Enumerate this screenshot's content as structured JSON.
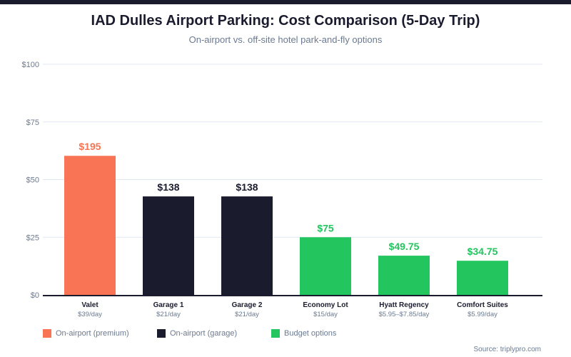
{
  "header": {
    "title": "IAD Dulles Airport Parking: Cost Comparison (5-Day Trip)",
    "subtitle": "On-airport vs. off-site hotel park-and-fly options"
  },
  "source": "Source: triplypro.com",
  "colors": {
    "premium": "#f87455",
    "garage": "#1a1c2e",
    "budget": "#22c55e",
    "grid": "#e2e8f0",
    "axis_text": "#6b7a90"
  },
  "legend": [
    {
      "label": "On-airport (premium)",
      "group": "premium"
    },
    {
      "label": "On-airport (garage)",
      "group": "garage"
    },
    {
      "label": "Budget options",
      "group": "budget"
    }
  ],
  "chart_data": {
    "type": "bar",
    "title": "IAD Dulles Airport Parking: Cost Comparison (5-Day Trip)",
    "subtitle": "On-airport vs. off-site hotel park-and-fly options",
    "xlabel": "",
    "ylabel": "",
    "ylim": [
      0,
      100
    ],
    "yticks": [
      0,
      25,
      50,
      75,
      100
    ],
    "ytick_labels": [
      "$0",
      "$25",
      "$50",
      "$75",
      "$100"
    ],
    "grid": true,
    "legend_position": "bottom-left",
    "categories": [
      "Valet",
      "Garage 1",
      "Garage 2",
      "Economy Lot",
      "Hyatt Regency",
      "Comfort Suites"
    ],
    "sublabels": [
      "$39/day",
      "$21/day",
      "$21/day",
      "$15/day",
      "$5.95–$7.85/day",
      "$5.99/day"
    ],
    "data_labels": [
      "$195",
      "$138",
      "$138",
      "$75",
      "$49.75",
      "$34.75"
    ],
    "values": [
      195,
      138,
      138,
      75,
      49.75,
      34.75
    ],
    "axis_values": [
      60.3,
      42.7,
      42.7,
      25,
      17,
      14.8
    ],
    "groups": [
      "premium",
      "garage",
      "garage",
      "budget",
      "budget",
      "budget"
    ]
  }
}
